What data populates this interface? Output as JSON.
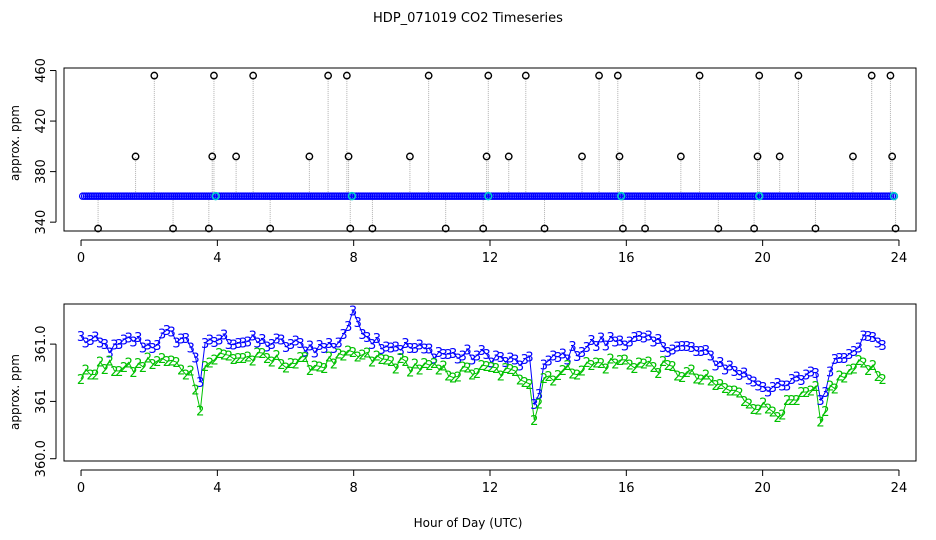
{
  "chart_data": [
    {
      "type": "line",
      "title": "HDP_071019  CO2 Timeseries",
      "ylabel": "approx. ppm",
      "xlabel": "",
      "xlim": [
        -0.5,
        24.5
      ],
      "ylim": [
        333,
        462
      ],
      "x_ticks": [
        0,
        4,
        8,
        12,
        16,
        20,
        24
      ],
      "x_tick_labels": [
        "0",
        "4",
        "8",
        "12",
        "16",
        "20",
        "24"
      ],
      "y_ticks": [
        340,
        380,
        420,
        460
      ],
      "y_tick_labels": [
        "340",
        "380",
        "420",
        "460"
      ],
      "baseline_value": 360.6,
      "baseline_start": 0.05,
      "baseline_end": 23.9,
      "baseline_color": "#0000ff",
      "cyan_points": [
        [
          3.95,
          360.6
        ],
        [
          7.95,
          360.6
        ],
        [
          11.95,
          360.6
        ],
        [
          15.85,
          360.6
        ],
        [
          19.9,
          360.6
        ],
        [
          23.85,
          360.6
        ]
      ],
      "spikes": [
        {
          "x": 0.5,
          "y": 335
        },
        {
          "x": 1.6,
          "y": 392
        },
        {
          "x": 2.15,
          "y": 456
        },
        {
          "x": 2.7,
          "y": 335
        },
        {
          "x": 3.75,
          "y": 335
        },
        {
          "x": 3.85,
          "y": 392
        },
        {
          "x": 3.9,
          "y": 456
        },
        {
          "x": 4.55,
          "y": 392
        },
        {
          "x": 5.05,
          "y": 456
        },
        {
          "x": 5.55,
          "y": 335
        },
        {
          "x": 6.7,
          "y": 392
        },
        {
          "x": 7.25,
          "y": 456
        },
        {
          "x": 7.8,
          "y": 456
        },
        {
          "x": 7.85,
          "y": 392
        },
        {
          "x": 7.9,
          "y": 335
        },
        {
          "x": 8.55,
          "y": 335
        },
        {
          "x": 9.65,
          "y": 392
        },
        {
          "x": 10.2,
          "y": 456
        },
        {
          "x": 10.7,
          "y": 335
        },
        {
          "x": 11.8,
          "y": 335
        },
        {
          "x": 11.9,
          "y": 392
        },
        {
          "x": 11.95,
          "y": 456
        },
        {
          "x": 12.55,
          "y": 392
        },
        {
          "x": 13.05,
          "y": 456
        },
        {
          "x": 13.6,
          "y": 335
        },
        {
          "x": 14.7,
          "y": 392
        },
        {
          "x": 15.2,
          "y": 456
        },
        {
          "x": 15.75,
          "y": 456
        },
        {
          "x": 15.8,
          "y": 392
        },
        {
          "x": 15.9,
          "y": 335
        },
        {
          "x": 16.55,
          "y": 335
        },
        {
          "x": 17.6,
          "y": 392
        },
        {
          "x": 18.15,
          "y": 456
        },
        {
          "x": 18.7,
          "y": 335
        },
        {
          "x": 19.75,
          "y": 335
        },
        {
          "x": 19.85,
          "y": 392
        },
        {
          "x": 19.9,
          "y": 456
        },
        {
          "x": 20.5,
          "y": 392
        },
        {
          "x": 21.05,
          "y": 456
        },
        {
          "x": 21.55,
          "y": 335
        },
        {
          "x": 22.65,
          "y": 392
        },
        {
          "x": 23.2,
          "y": 456
        },
        {
          "x": 23.75,
          "y": 456
        },
        {
          "x": 23.8,
          "y": 392
        },
        {
          "x": 23.9,
          "y": 335
        }
      ],
      "spike_line_color": "#b0b0b0",
      "marker_color": "#000000"
    },
    {
      "type": "line",
      "title": "",
      "ylabel": "approx. ppm",
      "xlabel": "Hour of Day (UTC)",
      "xlim": [
        -0.5,
        24.5
      ],
      "ylim": [
        359.98,
        361.35
      ],
      "x_ticks": [
        0,
        4,
        8,
        12,
        16,
        20,
        24
      ],
      "x_tick_labels": [
        "0",
        "4",
        "8",
        "12",
        "16",
        "20",
        "24"
      ],
      "y_ticks": [
        360.0,
        360.5,
        361.0
      ],
      "y_tick_labels": [
        "360.0",
        "361",
        "361.0"
      ],
      "series": [
        {
          "name": "3",
          "marker": "3",
          "color": "#0000ff",
          "anchors": [
            [
              0.0,
              361.05
            ],
            [
              0.5,
              361.0
            ],
            [
              1.0,
              360.95
            ],
            [
              1.5,
              361.05
            ],
            [
              2.0,
              360.98
            ],
            [
              2.5,
              361.08
            ],
            [
              3.0,
              361.05
            ],
            [
              3.35,
              360.95
            ],
            [
              3.45,
              360.55
            ],
            [
              3.6,
              360.95
            ],
            [
              4.0,
              361.05
            ],
            [
              5.0,
              361.02
            ],
            [
              6.0,
              361.0
            ],
            [
              7.0,
              360.97
            ],
            [
              7.5,
              361.0
            ],
            [
              8.0,
              361.25
            ],
            [
              8.5,
              361.05
            ],
            [
              9.0,
              361.0
            ],
            [
              10.0,
              360.95
            ],
            [
              11.0,
              360.9
            ],
            [
              12.0,
              360.9
            ],
            [
              12.5,
              360.85
            ],
            [
              13.2,
              360.83
            ],
            [
              13.35,
              360.3
            ],
            [
              13.5,
              360.8
            ],
            [
              14.0,
              360.88
            ],
            [
              15.0,
              361.0
            ],
            [
              16.0,
              361.05
            ],
            [
              17.0,
              361.0
            ],
            [
              18.0,
              360.95
            ],
            [
              19.0,
              360.8
            ],
            [
              20.0,
              360.65
            ],
            [
              20.5,
              360.6
            ],
            [
              21.0,
              360.68
            ],
            [
              21.6,
              360.8
            ],
            [
              21.75,
              360.3
            ],
            [
              21.9,
              360.8
            ],
            [
              22.5,
              360.95
            ],
            [
              23.0,
              361.05
            ],
            [
              23.6,
              361.02
            ]
          ]
        },
        {
          "name": "2",
          "marker": "2",
          "color": "#00c000",
          "anchors": [
            [
              0.0,
              360.7
            ],
            [
              0.5,
              360.8
            ],
            [
              1.0,
              360.8
            ],
            [
              1.5,
              360.78
            ],
            [
              2.0,
              360.85
            ],
            [
              2.5,
              360.85
            ],
            [
              3.0,
              360.8
            ],
            [
              3.35,
              360.7
            ],
            [
              3.45,
              360.3
            ],
            [
              3.6,
              360.8
            ],
            [
              4.0,
              360.9
            ],
            [
              5.0,
              360.88
            ],
            [
              6.0,
              360.85
            ],
            [
              7.0,
              360.82
            ],
            [
              8.0,
              360.9
            ],
            [
              9.0,
              360.85
            ],
            [
              10.0,
              360.8
            ],
            [
              11.0,
              360.75
            ],
            [
              12.0,
              360.78
            ],
            [
              12.5,
              360.75
            ],
            [
              13.2,
              360.7
            ],
            [
              13.35,
              360.2
            ],
            [
              13.5,
              360.7
            ],
            [
              14.0,
              360.75
            ],
            [
              15.0,
              360.82
            ],
            [
              16.0,
              360.85
            ],
            [
              17.0,
              360.8
            ],
            [
              18.0,
              360.72
            ],
            [
              19.0,
              360.6
            ],
            [
              20.0,
              360.45
            ],
            [
              20.5,
              360.42
            ],
            [
              21.0,
              360.5
            ],
            [
              21.6,
              360.6
            ],
            [
              21.75,
              360.1
            ],
            [
              21.9,
              360.6
            ],
            [
              22.5,
              360.75
            ],
            [
              23.0,
              360.85
            ],
            [
              23.6,
              360.72
            ]
          ]
        }
      ]
    }
  ]
}
